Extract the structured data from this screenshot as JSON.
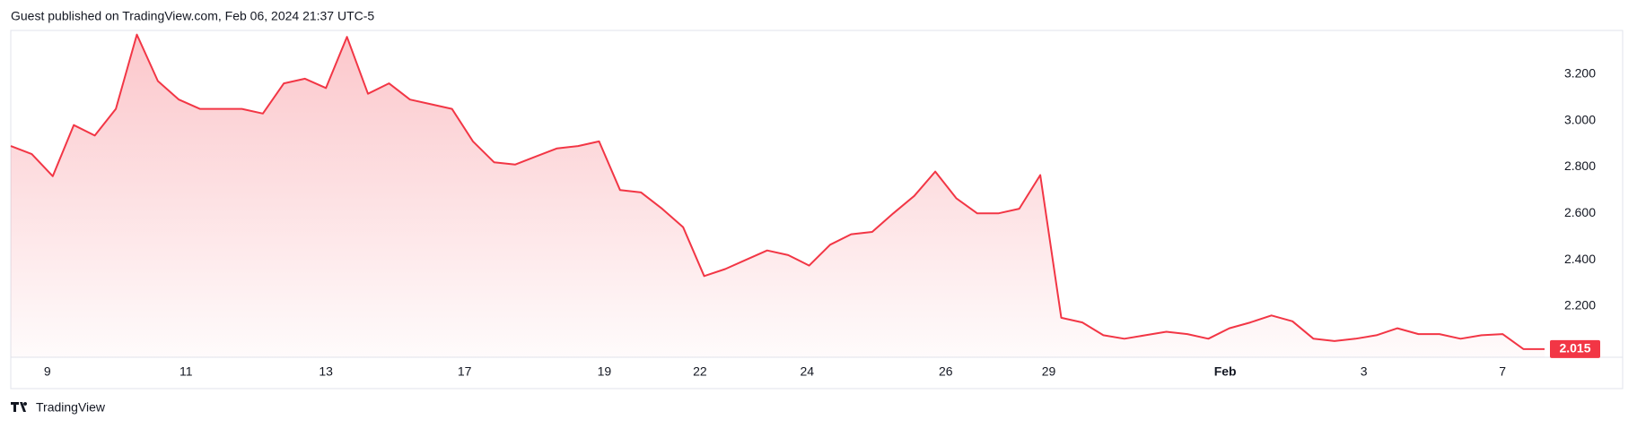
{
  "header": {
    "title": "Guest published on TradingView.com, Feb 06, 2024 21:37 UTC-5"
  },
  "footer": {
    "brand": "TradingView"
  },
  "chart_data": {
    "type": "area",
    "color": "#f23645",
    "values": [
      2.89,
      2.855,
      2.76,
      2.98,
      2.935,
      3.05,
      3.37,
      3.17,
      3.09,
      3.05,
      3.05,
      3.05,
      3.03,
      3.16,
      3.18,
      3.14,
      3.36,
      3.115,
      3.16,
      3.09,
      3.07,
      3.05,
      2.91,
      2.82,
      2.81,
      2.845,
      2.88,
      2.89,
      2.91,
      2.7,
      2.69,
      2.62,
      2.54,
      2.33,
      2.36,
      2.4,
      2.44,
      2.42,
      2.375,
      2.465,
      2.51,
      2.52,
      2.6,
      2.675,
      2.78,
      2.665,
      2.6,
      2.6,
      2.62,
      2.765,
      2.15,
      2.13,
      2.075,
      2.06,
      2.075,
      2.09,
      2.08,
      2.06,
      2.105,
      2.13,
      2.16,
      2.135,
      2.06,
      2.05,
      2.06,
      2.075,
      2.105,
      2.08,
      2.08,
      2.06,
      2.075,
      2.08,
      2.015,
      2.015
    ],
    "xlim": [
      0,
      73
    ],
    "xticks": [
      {
        "value": 1.74,
        "label": "9"
      },
      {
        "value": 8.34,
        "label": "11"
      },
      {
        "value": 15.0,
        "label": "13"
      },
      {
        "value": 21.6,
        "label": "17"
      },
      {
        "value": 28.25,
        "label": "19"
      },
      {
        "value": 32.8,
        "label": "22"
      },
      {
        "value": 37.9,
        "label": "24"
      },
      {
        "value": 44.5,
        "label": "26"
      },
      {
        "value": 49.4,
        "label": "29"
      },
      {
        "value": 57.8,
        "label": "Feb"
      },
      {
        "value": 64.4,
        "label": "3"
      },
      {
        "value": 71.0,
        "label": "7"
      }
    ],
    "ylim": [
      1.98,
      3.384
    ],
    "yticks": [
      {
        "value": 2.2,
        "label": "2.200"
      },
      {
        "value": 2.4,
        "label": "2.400"
      },
      {
        "value": 2.6,
        "label": "2.600"
      },
      {
        "value": 2.8,
        "label": "2.800"
      },
      {
        "value": 3.0,
        "label": "3.000"
      },
      {
        "value": 3.2,
        "label": "3.200"
      }
    ]
  }
}
